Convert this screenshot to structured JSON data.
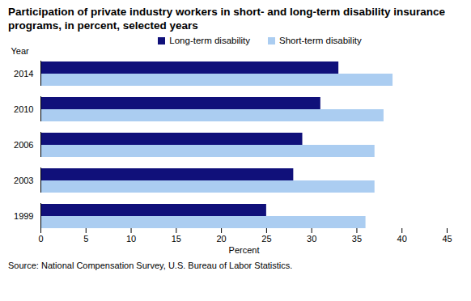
{
  "chart_data": {
    "type": "bar",
    "orientation": "horizontal",
    "title": "Participation of private industry workers in short- and long-term disability insurance programs, in percent, selected years",
    "x_label": "Percent",
    "y_label": "Year",
    "categories": [
      "2014",
      "2010",
      "2006",
      "2003",
      "1999"
    ],
    "series": [
      {
        "name": "Long-term disability",
        "color": "#10107a",
        "values": [
          33,
          31,
          29,
          28,
          25
        ]
      },
      {
        "name": "Short-term disability",
        "color": "#abcdf1",
        "values": [
          39,
          38,
          37,
          37,
          36
        ]
      }
    ],
    "xlim": [
      0,
      45
    ],
    "xticks": [
      0,
      5,
      10,
      15,
      20,
      25,
      30,
      35,
      40,
      45
    ],
    "grid": false,
    "legend": "top",
    "caption": "Source: National Compensation Survey, U.S. Bureau of Labor Statistics."
  }
}
